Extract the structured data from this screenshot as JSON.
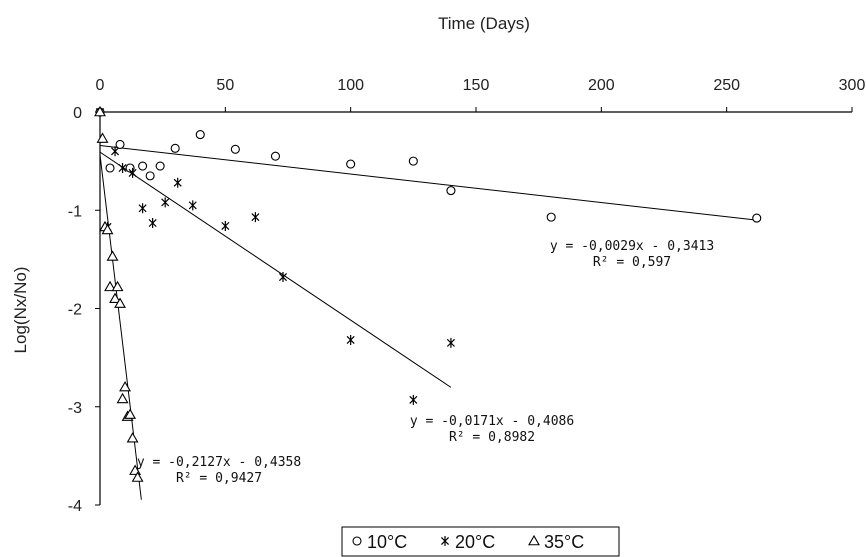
{
  "chart_data": {
    "type": "scatter",
    "xlabel": "Time (Days)",
    "ylabel": "Log(Nx/No)",
    "xlim": [
      0,
      300
    ],
    "ylim": [
      -4,
      0
    ],
    "x_ticks": [
      0,
      50,
      100,
      150,
      200,
      250,
      300
    ],
    "y_ticks": [
      0,
      -1,
      -2,
      -3,
      -4
    ],
    "x_axis_position": "top",
    "grid": false,
    "legend_position": "bottom",
    "series": [
      {
        "name": "10°C",
        "marker": "circle",
        "x": [
          0,
          4,
          8,
          12,
          17,
          20,
          24,
          30,
          40,
          54,
          70,
          100,
          125,
          140,
          180,
          262
        ],
        "y": [
          0,
          -0.57,
          -0.33,
          -0.57,
          -0.55,
          -0.65,
          -0.55,
          -0.37,
          -0.23,
          -0.38,
          -0.45,
          -0.53,
          -0.5,
          -0.8,
          -1.07,
          -1.08
        ],
        "fit": {
          "slope": -0.0029,
          "intercept": -0.3413,
          "x_range": [
            0,
            262
          ],
          "equation": "y = -0,0029x - 0,3413",
          "r2": "R² = 0,597"
        }
      },
      {
        "name": "20°C",
        "marker": "star",
        "x": [
          0,
          3,
          6,
          9,
          13,
          17,
          21,
          26,
          31,
          37,
          50,
          62,
          73,
          100,
          125,
          140
        ],
        "y": [
          0,
          -1.17,
          -0.4,
          -0.57,
          -0.62,
          -0.98,
          -1.13,
          -0.92,
          -0.72,
          -0.95,
          -1.16,
          -1.07,
          -1.68,
          -2.32,
          -2.93,
          -2.35
        ],
        "fit": {
          "slope": -0.0171,
          "intercept": -0.4086,
          "x_range": [
            0,
            140
          ],
          "equation": "y = -0,0171x - 0,4086",
          "r2": "R² = 0,8982"
        }
      },
      {
        "name": "35°C",
        "marker": "triangle",
        "x": [
          0,
          1,
          2,
          3,
          4,
          5,
          6,
          7,
          8,
          9,
          10,
          11,
          12,
          13,
          14,
          15
        ],
        "y": [
          0,
          -0.27,
          -1.17,
          -1.2,
          -1.78,
          -1.47,
          -1.9,
          -1.78,
          -1.95,
          -2.92,
          -2.8,
          -3.1,
          -3.08,
          -3.32,
          -3.65,
          -3.72
        ],
        "fit": {
          "slope": -0.2127,
          "intercept": -0.4358,
          "x_range": [
            0,
            16.5
          ],
          "equation": "y = -0,2127x - 0,4358",
          "r2": "R² = 0,9427"
        }
      }
    ]
  }
}
